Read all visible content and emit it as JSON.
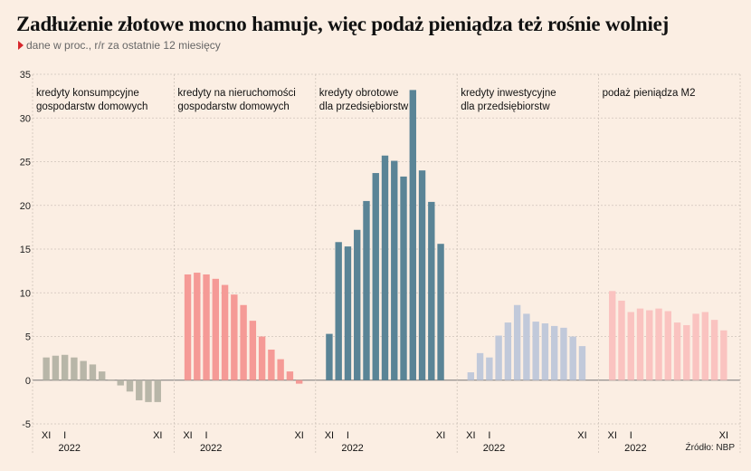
{
  "title": "Zadłużenie złotowe mocno hamuje, więc podaż pieniądza też rośnie wolniej",
  "subtitle": "dane w proc., r/r za ostatnie 12 miesięcy",
  "source": "Źródło: NBP",
  "colors": {
    "background": "#fbeee3",
    "marker": "#d7262b"
  },
  "chart_data": {
    "type": "bar",
    "ylim": [
      -5,
      35
    ],
    "yticks": [
      -5,
      0,
      5,
      10,
      15,
      20,
      25,
      30,
      35
    ],
    "grid": true,
    "panels": [
      {
        "label_lines": [
          "kredyty konsumpcyjne",
          "gospodarstw domowych"
        ],
        "color": "#b8b6a8",
        "x_ticks": [
          "XI",
          "I",
          "XI"
        ],
        "x_year": "2022",
        "values": [
          2.6,
          2.8,
          2.9,
          2.6,
          2.2,
          1.8,
          1.0,
          0.0,
          -0.6,
          -1.3,
          -2.3,
          -2.5,
          -2.5
        ]
      },
      {
        "label_lines": [
          "kredyty na nieruchomości",
          "gospodarstw domowych"
        ],
        "color": "#f59a96",
        "x_ticks": [
          "XI",
          "I",
          "XI"
        ],
        "x_year": "2022",
        "values": [
          12.1,
          12.3,
          12.1,
          11.6,
          10.9,
          9.8,
          8.6,
          6.8,
          5.0,
          3.5,
          2.4,
          1.0,
          -0.4
        ]
      },
      {
        "label_lines": [
          "kredyty obrotowe",
          "dla przedsiębiorstw"
        ],
        "color": "#5a8496",
        "x_ticks": [
          "XI",
          "I",
          "XI"
        ],
        "x_year": "2022",
        "values": [
          5.3,
          15.8,
          15.3,
          17.2,
          20.5,
          23.7,
          25.7,
          25.1,
          23.3,
          33.2,
          24.0,
          20.4,
          15.6
        ]
      },
      {
        "label_lines": [
          "kredyty inwestycyjne",
          "dla przedsiębiorstw"
        ],
        "color": "#c1c9da",
        "x_ticks": [
          "XI",
          "I",
          "XI"
        ],
        "x_year": "2022",
        "values": [
          0.9,
          3.1,
          2.6,
          5.1,
          6.6,
          8.6,
          7.6,
          6.7,
          6.5,
          6.2,
          6.0,
          5.0,
          3.9
        ]
      },
      {
        "label_lines": [
          "podaż pieniądza M2"
        ],
        "color": "#fac3c0",
        "x_ticks": [
          "XI",
          "I",
          "XI"
        ],
        "x_year": "2022",
        "values": [
          10.2,
          9.1,
          7.8,
          8.2,
          8.0,
          8.2,
          7.9,
          6.6,
          6.3,
          7.6,
          7.8,
          6.9,
          5.7
        ]
      }
    ]
  }
}
